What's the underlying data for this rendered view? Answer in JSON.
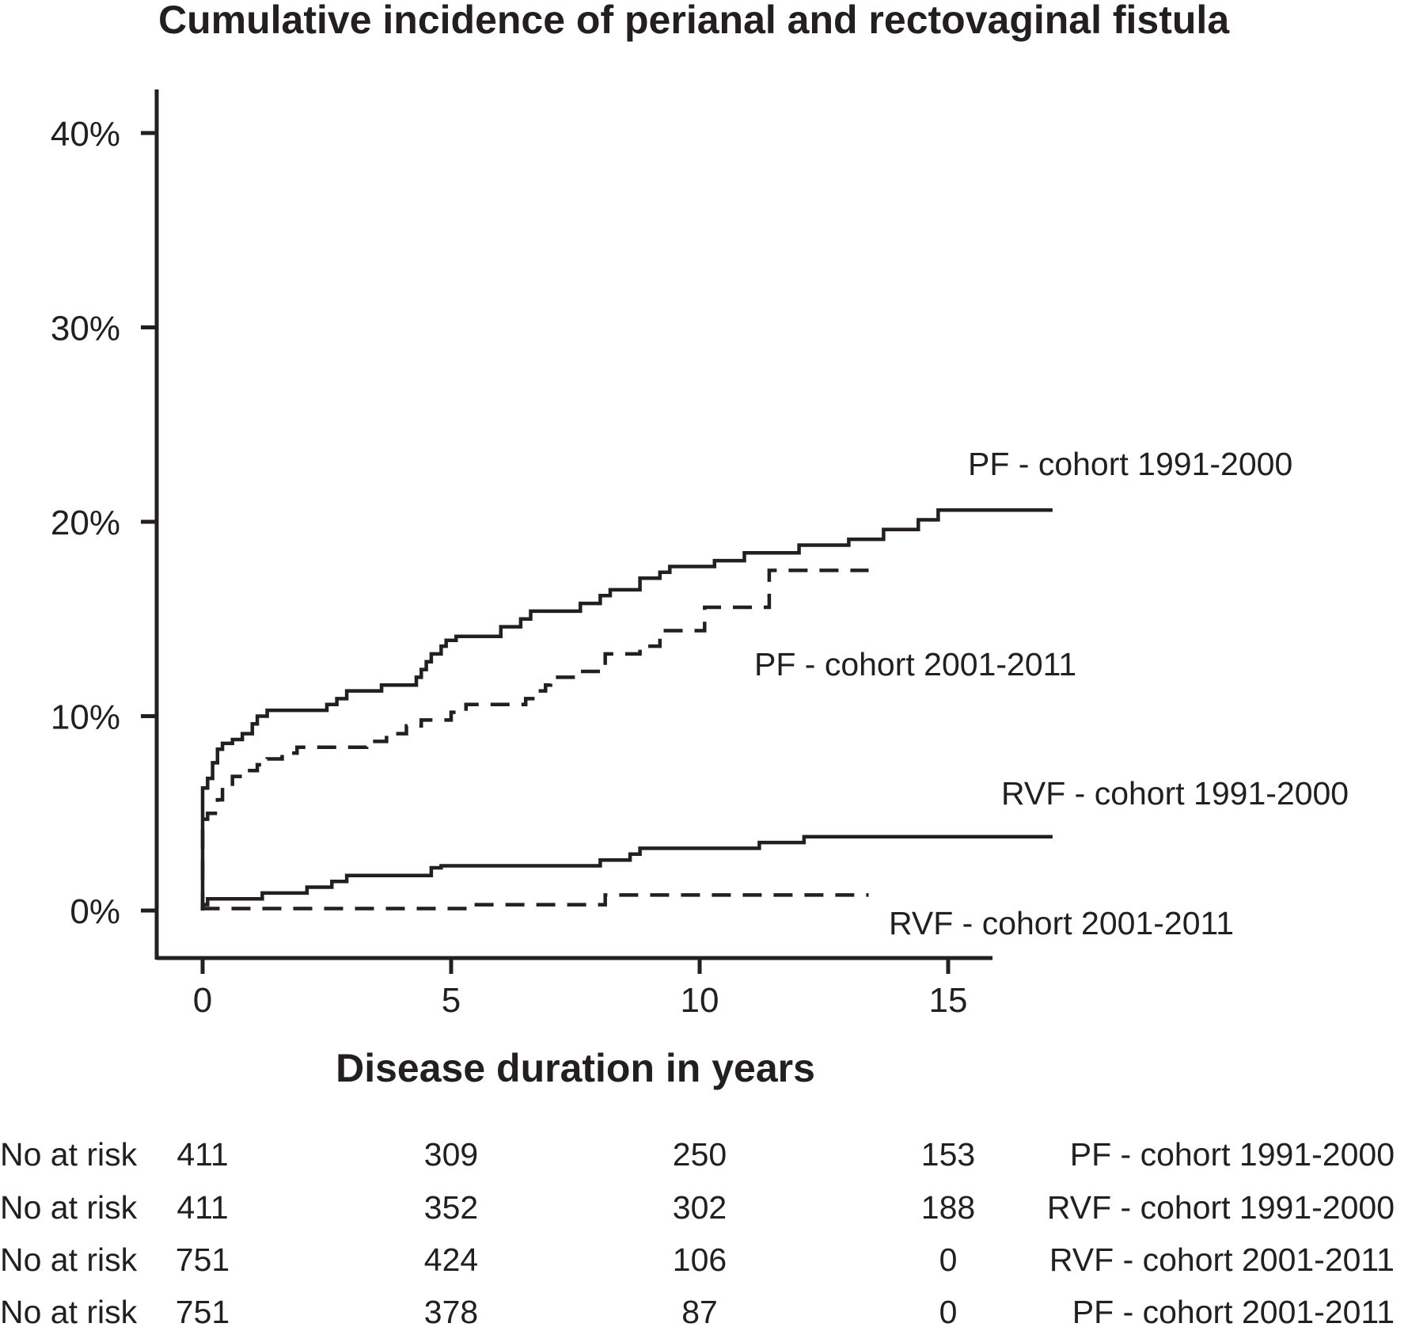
{
  "chart_data": {
    "type": "line",
    "title": "Cumulative incidence of perianal and rectovaginal fistula",
    "xlabel": "Disease duration in years",
    "ylabel": "",
    "xlim": [
      -0.9,
      15.9
    ],
    "ylim": [
      -2.5,
      42.2
    ],
    "x_ticks": [
      0,
      5,
      10,
      15
    ],
    "x_tick_labels": [
      "0",
      "5",
      "10",
      "15"
    ],
    "y_ticks": [
      0,
      10,
      20,
      30,
      40
    ],
    "y_tick_labels": [
      "0%",
      "10%",
      "20%",
      "30%",
      "40%"
    ],
    "grid": false,
    "legend": "inline labels",
    "series": [
      {
        "name": "PF - cohort 1991-2000",
        "style": "solid",
        "points": [
          [
            0,
            0
          ],
          [
            0,
            6.3
          ],
          [
            0.1,
            6.3
          ],
          [
            0.1,
            6.8
          ],
          [
            0.2,
            6.8
          ],
          [
            0.2,
            7.6
          ],
          [
            0.3,
            7.6
          ],
          [
            0.3,
            8.3
          ],
          [
            0.4,
            8.3
          ],
          [
            0.4,
            8.6
          ],
          [
            0.6,
            8.6
          ],
          [
            0.6,
            8.8
          ],
          [
            0.8,
            8.8
          ],
          [
            0.8,
            9.1
          ],
          [
            1.0,
            9.1
          ],
          [
            1.0,
            9.6
          ],
          [
            1.1,
            9.6
          ],
          [
            1.1,
            10.0
          ],
          [
            1.3,
            10.0
          ],
          [
            1.3,
            10.3
          ],
          [
            2.5,
            10.3
          ],
          [
            2.5,
            10.6
          ],
          [
            2.7,
            10.6
          ],
          [
            2.7,
            10.9
          ],
          [
            2.9,
            10.9
          ],
          [
            2.9,
            11.3
          ],
          [
            3.6,
            11.3
          ],
          [
            3.6,
            11.6
          ],
          [
            4.3,
            11.6
          ],
          [
            4.3,
            12.0
          ],
          [
            4.4,
            12.0
          ],
          [
            4.4,
            12.4
          ],
          [
            4.5,
            12.4
          ],
          [
            4.5,
            12.8
          ],
          [
            4.6,
            12.8
          ],
          [
            4.6,
            13.2
          ],
          [
            4.8,
            13.2
          ],
          [
            4.8,
            13.6
          ],
          [
            4.9,
            13.6
          ],
          [
            4.9,
            13.9
          ],
          [
            5.1,
            13.9
          ],
          [
            5.1,
            14.1
          ],
          [
            6.0,
            14.1
          ],
          [
            6.0,
            14.6
          ],
          [
            6.4,
            14.6
          ],
          [
            6.4,
            15.0
          ],
          [
            6.6,
            15.0
          ],
          [
            6.6,
            15.4
          ],
          [
            7.6,
            15.4
          ],
          [
            7.6,
            15.8
          ],
          [
            8.0,
            15.8
          ],
          [
            8.0,
            16.2
          ],
          [
            8.2,
            16.2
          ],
          [
            8.2,
            16.5
          ],
          [
            8.8,
            16.5
          ],
          [
            8.8,
            17.1
          ],
          [
            9.2,
            17.1
          ],
          [
            9.2,
            17.4
          ],
          [
            9.4,
            17.4
          ],
          [
            9.4,
            17.7
          ],
          [
            10.3,
            17.7
          ],
          [
            10.3,
            18.0
          ],
          [
            10.9,
            18.0
          ],
          [
            10.9,
            18.4
          ],
          [
            12.0,
            18.4
          ],
          [
            12.0,
            18.8
          ],
          [
            13.0,
            18.8
          ],
          [
            13.0,
            19.1
          ],
          [
            13.7,
            19.1
          ],
          [
            13.7,
            19.6
          ],
          [
            14.4,
            19.6
          ],
          [
            14.4,
            20.1
          ],
          [
            14.8,
            20.1
          ],
          [
            14.8,
            20.6
          ],
          [
            17.1,
            20.6
          ]
        ]
      },
      {
        "name": "PF - cohort 2001-2011",
        "style": "dashed",
        "points": [
          [
            0,
            0
          ],
          [
            0,
            4.7
          ],
          [
            0.1,
            4.7
          ],
          [
            0.1,
            5.0
          ],
          [
            0.3,
            5.0
          ],
          [
            0.3,
            5.7
          ],
          [
            0.4,
            5.7
          ],
          [
            0.4,
            6.5
          ],
          [
            0.6,
            6.5
          ],
          [
            0.6,
            6.9
          ],
          [
            0.8,
            6.9
          ],
          [
            0.8,
            7.2
          ],
          [
            1.1,
            7.2
          ],
          [
            1.1,
            7.5
          ],
          [
            1.3,
            7.5
          ],
          [
            1.3,
            7.8
          ],
          [
            1.6,
            7.8
          ],
          [
            1.6,
            8.1
          ],
          [
            1.9,
            8.1
          ],
          [
            1.9,
            8.4
          ],
          [
            3.3,
            8.4
          ],
          [
            3.3,
            8.7
          ],
          [
            3.7,
            8.7
          ],
          [
            3.7,
            9.1
          ],
          [
            4.1,
            9.1
          ],
          [
            4.1,
            9.5
          ],
          [
            4.4,
            9.5
          ],
          [
            4.4,
            9.8
          ],
          [
            5.0,
            9.8
          ],
          [
            5.0,
            10.2
          ],
          [
            5.3,
            10.2
          ],
          [
            5.3,
            10.6
          ],
          [
            6.5,
            10.6
          ],
          [
            6.5,
            10.9
          ],
          [
            6.7,
            10.9
          ],
          [
            6.7,
            11.3
          ],
          [
            6.9,
            11.3
          ],
          [
            6.9,
            11.6
          ],
          [
            7.0,
            11.6
          ],
          [
            7.0,
            12.0
          ],
          [
            7.5,
            12.0
          ],
          [
            7.5,
            12.3
          ],
          [
            8.1,
            12.3
          ],
          [
            8.1,
            13.2
          ],
          [
            8.8,
            13.2
          ],
          [
            8.8,
            13.6
          ],
          [
            9.2,
            13.6
          ],
          [
            9.2,
            14.4
          ],
          [
            10.1,
            14.4
          ],
          [
            10.1,
            15.6
          ],
          [
            11.4,
            15.6
          ],
          [
            11.4,
            17.5
          ],
          [
            13.4,
            17.5
          ]
        ]
      },
      {
        "name": "RVF - cohort 1991-2000",
        "style": "solid",
        "points": [
          [
            0,
            0
          ],
          [
            0,
            0.3
          ],
          [
            0.1,
            0.3
          ],
          [
            0.1,
            0.6
          ],
          [
            1.2,
            0.6
          ],
          [
            1.2,
            0.9
          ],
          [
            2.1,
            0.9
          ],
          [
            2.1,
            1.2
          ],
          [
            2.6,
            1.2
          ],
          [
            2.6,
            1.5
          ],
          [
            2.9,
            1.5
          ],
          [
            2.9,
            1.8
          ],
          [
            4.6,
            1.8
          ],
          [
            4.6,
            2.2
          ],
          [
            4.8,
            2.2
          ],
          [
            4.8,
            2.3
          ],
          [
            8.0,
            2.3
          ],
          [
            8.0,
            2.6
          ],
          [
            8.6,
            2.6
          ],
          [
            8.6,
            2.9
          ],
          [
            8.8,
            2.9
          ],
          [
            8.8,
            3.2
          ],
          [
            11.2,
            3.2
          ],
          [
            11.2,
            3.5
          ],
          [
            12.1,
            3.5
          ],
          [
            12.1,
            3.8
          ],
          [
            17.1,
            3.8
          ]
        ]
      },
      {
        "name": "RVF - cohort 2001-2011",
        "style": "dashed",
        "points": [
          [
            0,
            0
          ],
          [
            0,
            0.1
          ],
          [
            5.4,
            0.1
          ],
          [
            5.4,
            0.3
          ],
          [
            8.1,
            0.3
          ],
          [
            8.1,
            0.8
          ],
          [
            13.4,
            0.8
          ]
        ]
      }
    ],
    "risk_table": {
      "row_label": "No at risk",
      "rows": [
        {
          "name": "PF - cohort 1991-2000",
          "values": [
            "411",
            "309",
            "250",
            "153"
          ]
        },
        {
          "name": "RVF - cohort 1991-2000",
          "values": [
            "411",
            "352",
            "302",
            "188"
          ]
        },
        {
          "name": "RVF - cohort 2001-2011",
          "values": [
            "751",
            "424",
            "106",
            "0"
          ]
        },
        {
          "name": "PF - cohort 2001-2011",
          "values": [
            "751",
            "378",
            "87",
            "0"
          ]
        }
      ]
    }
  }
}
